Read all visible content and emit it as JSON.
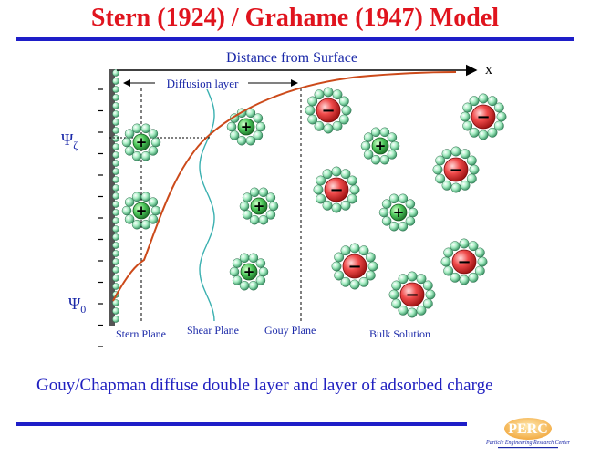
{
  "title": "Stern (1924) / Grahame (1947) Model",
  "axis": {
    "label": "Distance from Surface",
    "x_symbol": "x"
  },
  "labels": {
    "diffusion_layer": "Diffusion layer",
    "psi_zeta": "Ψ",
    "psi_zeta_sub": "ζ",
    "psi_zero": "Ψ",
    "psi_zero_sub": "0",
    "stern_plane": "Stern Plane",
    "shear_plane": "Shear Plane",
    "gouy_plane": "Gouy Plane",
    "bulk_solution": "Bulk Solution"
  },
  "caption": "Gouy/Chapman diffuse double layer and layer of adsorbed charge",
  "logo": {
    "text": "PERC",
    "sub": "Particle Engineering Research Center"
  },
  "colors": {
    "title": "#e0141e",
    "rule": "#1e1ec8",
    "label": "#1a28a8",
    "curve": "#cc4a1a",
    "cation": "#3aa34a",
    "anion": "#e43a3a",
    "water": "#9fe0b8"
  },
  "ions": [
    {
      "sign": "+"
    },
    {
      "sign": "+"
    },
    {
      "sign": "+"
    },
    {
      "sign": "+"
    },
    {
      "sign": "+"
    },
    {
      "sign": "+"
    },
    {
      "sign": "+"
    },
    {
      "sign": "−"
    },
    {
      "sign": "−"
    },
    {
      "sign": "−"
    },
    {
      "sign": "−"
    },
    {
      "sign": "−"
    },
    {
      "sign": "−"
    },
    {
      "sign": "−"
    }
  ]
}
